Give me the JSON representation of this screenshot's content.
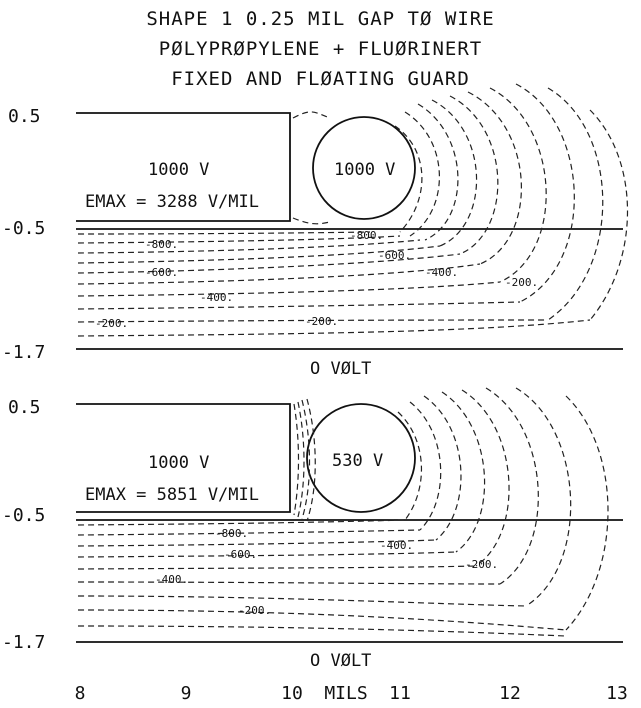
{
  "title": {
    "line1": "SHAPE 1  0.25 MIL GAP TØ WIRE",
    "line2": "PØLYPRØPYLENE + FLUØRINERT",
    "line3": "FIXED AND FLØATING GUARD"
  },
  "x_axis": {
    "ticks": [
      "8",
      "9",
      "10",
      "11",
      "12",
      "13"
    ],
    "label": "MILS"
  },
  "top_panel": {
    "y_ticks": [
      "0.5",
      "-0.5",
      "-1.7"
    ],
    "block_voltage": "1000 V",
    "emax": "EMAX = 3288 V/MIL",
    "wire_voltage": "1000 V",
    "ground": "O VØLT",
    "contour_labels": [
      "-800.",
      "-600.",
      "-400.",
      "-200.",
      "-800.",
      "-600.",
      "-400.",
      "-200.",
      "-200."
    ]
  },
  "bottom_panel": {
    "y_ticks": [
      "0.5",
      "-0.5",
      "-1.7"
    ],
    "block_voltage": "1000 V",
    "emax": "EMAX = 5851 V/MIL",
    "wire_voltage": "530 V",
    "ground": "O VØLT",
    "contour_labels": [
      "-800.",
      "-600.",
      "-400.",
      "-200.",
      "-400.",
      "-200."
    ]
  }
}
